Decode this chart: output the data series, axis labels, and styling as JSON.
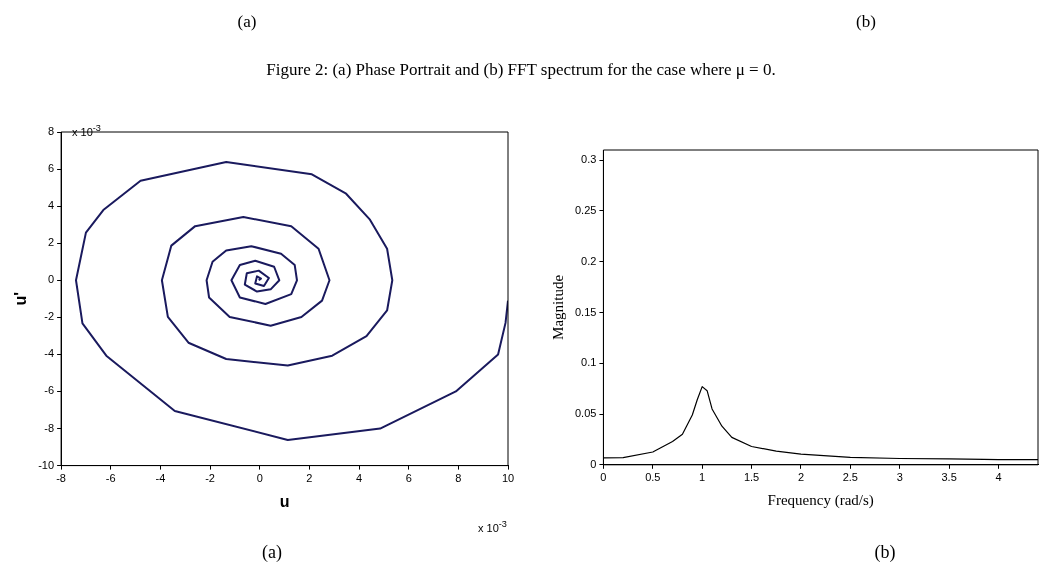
{
  "chart_data": [
    {
      "type": "other",
      "title": "Figure 2: (a) Phase Portrait and (b) FFT spectrum for the case where μ = 0.",
      "annotations": [
        "(a)",
        "(b)"
      ]
    },
    {
      "type": "line",
      "xlabel": "u",
      "ylabel": "u'",
      "xlim": [
        -8,
        10
      ],
      "ylim": [
        -10,
        8
      ],
      "xticks": [
        -8,
        -6,
        -4,
        -2,
        0,
        2,
        4,
        6,
        8,
        10
      ],
      "yticks": [
        -10,
        -8,
        -6,
        -4,
        -2,
        0,
        2,
        4,
        6,
        8
      ],
      "grid": false,
      "legend": false,
      "marker": "none",
      "annotations": [
        "x 10$^{-3}$",
        "x 10$^{-3}$",
        "(a)"
      ],
      "series": [
        {
          "color": "#1a1a5e",
          "x": [
            10,
            9.9,
            9.6,
            7.9,
            4.85,
            1.13,
            -3.42,
            -6.18,
            -7.14,
            -7.4,
            -7.0,
            -6.3,
            -4.8,
            -1.35,
            2.1,
            3.48,
            4.44,
            5.13,
            5.34,
            5.13,
            4.3,
            2.92,
            1.13,
            -1.35,
            -2.87,
            -3.7,
            -3.94,
            -3.56,
            -2.6,
            -0.66,
            1.27,
            2.37,
            2.81,
            2.51,
            1.68,
            0.44,
            -1.21,
            -2.04,
            -2.14,
            -1.9,
            -1.35,
            -0.34,
            0.86,
            1.41,
            1.5,
            1.27,
            0.23,
            -0.8,
            -1.14,
            -0.8,
            -0.18,
            0.58,
            0.79,
            0.44,
            -0.11,
            -0.6,
            -0.52,
            -0.04,
            0.37,
            0.17,
            -0.18,
            -0.11,
            0.05,
            -0.04
          ],
          "values": [
            -1.1,
            -2.3,
            -4.0,
            -6.0,
            -8.0,
            -8.62,
            -7.05,
            -4.07,
            -2.33,
            0,
            2.57,
            3.79,
            5.37,
            6.38,
            5.72,
            4.67,
            3.27,
            1.7,
            0,
            -1.63,
            -3.02,
            -4.07,
            -4.6,
            -4.25,
            -3.37,
            -1.98,
            0,
            1.87,
            2.92,
            3.41,
            2.92,
            1.7,
            0,
            -1.1,
            -1.98,
            -2.45,
            -1.98,
            -0.93,
            0,
            1.0,
            1.61,
            1.84,
            1.43,
            0.82,
            0,
            -0.75,
            -1.28,
            -0.93,
            0,
            0.82,
            1.05,
            0.73,
            0,
            -0.49,
            -0.61,
            -0.23,
            0.38,
            0.52,
            0.12,
            -0.31,
            -0.17,
            0.21,
            0.09,
            0
          ]
        }
      ]
    },
    {
      "type": "line",
      "xlabel": "Frequency (rad/s)",
      "ylabel": "Magnitude",
      "xlim": [
        0,
        4.4
      ],
      "ylim": [
        0,
        0.31
      ],
      "xticks": [
        0,
        0.5,
        1,
        1.5,
        2,
        2.5,
        3,
        3.5,
        4
      ],
      "yticks": [
        0,
        0.05,
        0.1,
        0.15,
        0.2,
        0.25,
        0.3
      ],
      "grid": false,
      "legend": false,
      "marker": "none",
      "annotations": [
        "(b)"
      ],
      "series": [
        {
          "color": "#000000",
          "x": [
            0,
            0.2,
            0.5,
            0.7,
            0.8,
            0.9,
            0.95,
            1.0,
            1.05,
            1.1,
            1.2,
            1.3,
            1.5,
            1.75,
            2.0,
            2.5,
            3.0,
            3.5,
            3.85,
            4.0,
            4.4
          ],
          "values": [
            0.0068,
            0.007,
            0.0126,
            0.023,
            0.03,
            0.049,
            0.064,
            0.077,
            0.073,
            0.055,
            0.038,
            0.027,
            0.018,
            0.0135,
            0.0106,
            0.0074,
            0.0062,
            0.0059,
            0.0053,
            0.005,
            0.005
          ]
        }
      ]
    }
  ]
}
